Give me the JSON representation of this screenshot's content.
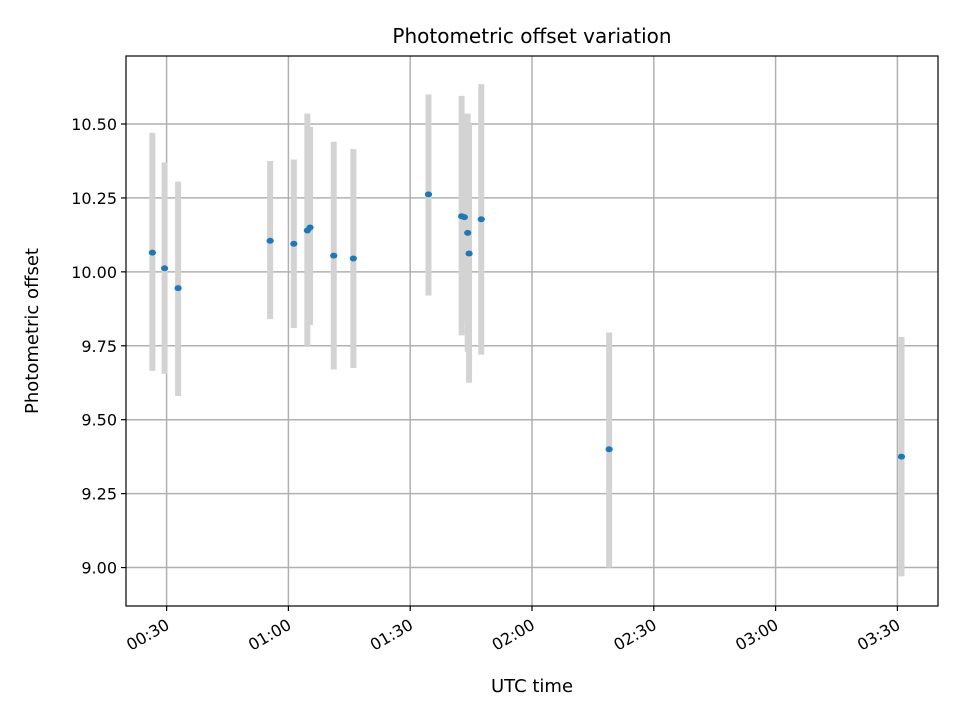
{
  "chart_data": {
    "type": "scatter",
    "title": "Photometric offset variation",
    "xlabel": "UTC time",
    "ylabel": "Photometric offset",
    "grid": true,
    "xlim": [
      "00:20",
      "03:40"
    ],
    "ylim": [
      8.87,
      10.73
    ],
    "xticks": [
      "00:30",
      "01:00",
      "01:30",
      "02:00",
      "02:30",
      "03:00",
      "03:30"
    ],
    "yticks": [
      "9.00",
      "9.25",
      "9.50",
      "9.75",
      "10.00",
      "10.25",
      "10.50"
    ],
    "colors": {
      "points": "#1f77b4",
      "errorbars": "#d3d3d3",
      "grid": "#b0b0b0"
    },
    "points": [
      {
        "x": "00:26:30",
        "y": 10.065,
        "ylow": 9.665,
        "yhigh": 10.47
      },
      {
        "x": "00:29:30",
        "y": 10.012,
        "ylow": 9.655,
        "yhigh": 10.37
      },
      {
        "x": "00:32:50",
        "y": 9.945,
        "ylow": 9.58,
        "yhigh": 10.305
      },
      {
        "x": "00:55:30",
        "y": 10.105,
        "ylow": 9.84,
        "yhigh": 10.375
      },
      {
        "x": "01:01:20",
        "y": 10.095,
        "ylow": 9.81,
        "yhigh": 10.38
      },
      {
        "x": "01:04:40",
        "y": 10.14,
        "ylow": 9.75,
        "yhigh": 10.535
      },
      {
        "x": "01:05:20",
        "y": 10.15,
        "ylow": 9.82,
        "yhigh": 10.49
      },
      {
        "x": "01:11:10",
        "y": 10.055,
        "ylow": 9.67,
        "yhigh": 10.44
      },
      {
        "x": "01:16:00",
        "y": 10.045,
        "ylow": 9.675,
        "yhigh": 10.415
      },
      {
        "x": "01:34:30",
        "y": 10.262,
        "ylow": 9.92,
        "yhigh": 10.6
      },
      {
        "x": "01:42:40",
        "y": 10.188,
        "ylow": 9.785,
        "yhigh": 10.595
      },
      {
        "x": "01:43:20",
        "y": 10.185,
        "ylow": 9.83,
        "yhigh": 10.535
      },
      {
        "x": "01:44:10",
        "y": 10.132,
        "ylow": 9.73,
        "yhigh": 10.535
      },
      {
        "x": "01:44:30",
        "y": 10.062,
        "ylow": 9.625,
        "yhigh": 10.5
      },
      {
        "x": "01:47:30",
        "y": 10.178,
        "ylow": 9.72,
        "yhigh": 10.635
      },
      {
        "x": "02:19:00",
        "y": 9.4,
        "ylow": 9.0,
        "yhigh": 9.795
      },
      {
        "x": "03:31:00",
        "y": 9.375,
        "ylow": 8.97,
        "yhigh": 9.78
      }
    ]
  }
}
